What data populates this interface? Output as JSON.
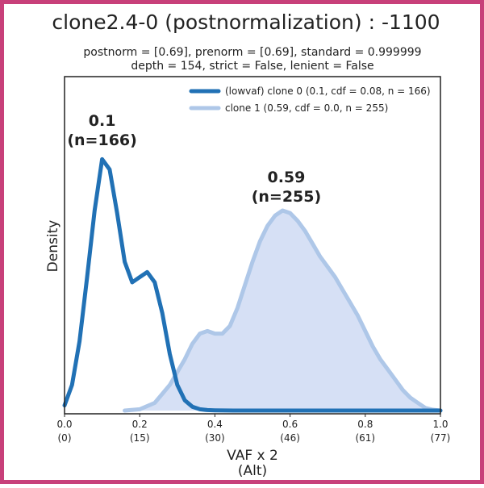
{
  "chart_data": {
    "type": "area",
    "title": "clone2.4-0 (postnormalization) : -1100",
    "subtitle_lines": [
      "postnorm = [0.69], prenorm = [0.69], standard = 0.999999",
      "depth = 154, strict = False, lenient = False"
    ],
    "xlabel_lines": [
      "VAF x 2",
      "(Alt)"
    ],
    "ylabel": "Density",
    "xlim": [
      0.0,
      1.0
    ],
    "ylim": [
      0,
      1
    ],
    "x_ticks": [
      {
        "value": 0.0,
        "label": "0.0",
        "sublabel": "(0)"
      },
      {
        "value": 0.2,
        "label": "0.2",
        "sublabel": "(15)"
      },
      {
        "value": 0.4,
        "label": "0.4",
        "sublabel": "(30)"
      },
      {
        "value": 0.6,
        "label": "0.6",
        "sublabel": "(46)"
      },
      {
        "value": 0.8,
        "label": "0.8",
        "sublabel": "(61)"
      },
      {
        "value": 1.0,
        "label": "1.0",
        "sublabel": "(77)"
      }
    ],
    "grid": false,
    "legend_position": "top-right",
    "series": [
      {
        "name": "(lowvaf) clone 0 (0.1, cdf = 0.08, n = 166)",
        "color": "#2171b5",
        "filled": false,
        "x": [
          0.0,
          0.02,
          0.04,
          0.06,
          0.08,
          0.1,
          0.12,
          0.14,
          0.16,
          0.18,
          0.2,
          0.22,
          0.24,
          0.26,
          0.28,
          0.3,
          0.32,
          0.34,
          0.36,
          0.38,
          0.4,
          0.45,
          0.5,
          0.6,
          0.8,
          1.0
        ],
        "y": [
          0.02,
          0.1,
          0.27,
          0.52,
          0.78,
          0.98,
          0.94,
          0.77,
          0.58,
          0.5,
          0.52,
          0.54,
          0.5,
          0.38,
          0.22,
          0.1,
          0.04,
          0.015,
          0.005,
          0.002,
          0.001,
          0.0,
          0.0,
          0.0,
          0.0,
          0.0
        ]
      },
      {
        "name": "clone 1 (0.59, cdf = 0.0, n = 255)",
        "color": "#aec7e8",
        "fill": "#d6e0f5",
        "filled": true,
        "x": [
          0.16,
          0.2,
          0.24,
          0.28,
          0.32,
          0.34,
          0.36,
          0.38,
          0.4,
          0.42,
          0.44,
          0.46,
          0.48,
          0.5,
          0.52,
          0.54,
          0.56,
          0.58,
          0.6,
          0.62,
          0.64,
          0.66,
          0.68,
          0.7,
          0.72,
          0.74,
          0.76,
          0.78,
          0.8,
          0.82,
          0.84,
          0.86,
          0.88,
          0.9,
          0.92,
          0.94,
          0.96,
          0.98,
          1.0
        ],
        "y": [
          0.0,
          0.005,
          0.03,
          0.1,
          0.2,
          0.26,
          0.3,
          0.31,
          0.3,
          0.3,
          0.33,
          0.4,
          0.49,
          0.58,
          0.66,
          0.72,
          0.76,
          0.78,
          0.77,
          0.74,
          0.7,
          0.65,
          0.6,
          0.56,
          0.52,
          0.47,
          0.42,
          0.37,
          0.31,
          0.25,
          0.2,
          0.16,
          0.12,
          0.08,
          0.05,
          0.03,
          0.01,
          0.003,
          0.0
        ]
      }
    ],
    "annotations": [
      {
        "x": 0.1,
        "y": 1.11,
        "lines": [
          "0.1",
          "(n=166)"
        ]
      },
      {
        "x": 0.59,
        "y": 0.89,
        "lines": [
          "0.59",
          "(n=255)"
        ]
      }
    ]
  }
}
